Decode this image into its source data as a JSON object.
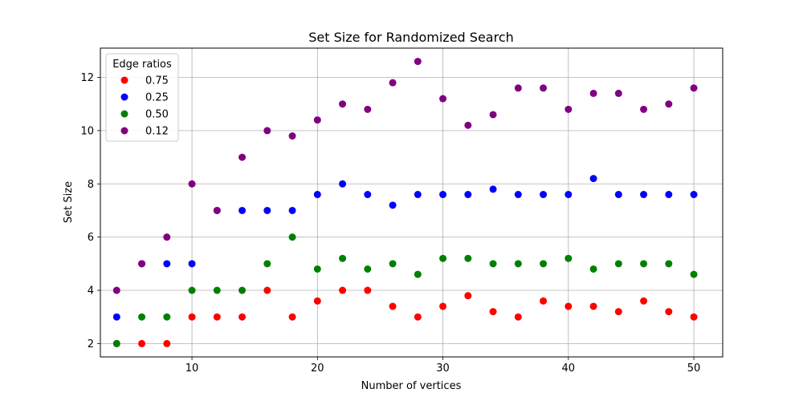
{
  "chart_data": {
    "type": "scatter",
    "title": "Set Size for Randomized Search",
    "xlabel": "Number of vertices",
    "ylabel": "Set Size",
    "xlim": [
      2.7,
      52.3
    ],
    "ylim": [
      1.5,
      13.1
    ],
    "xticks": [
      10,
      20,
      30,
      40,
      50
    ],
    "yticks": [
      2,
      4,
      6,
      8,
      10,
      12
    ],
    "grid": true,
    "legend": {
      "title": "Edge ratios",
      "position": "top-left"
    },
    "series": [
      {
        "name": "0.75",
        "color": "#ff0000",
        "x": [
          4,
          6,
          8,
          10,
          12,
          14,
          16,
          18,
          20,
          22,
          24,
          26,
          28,
          30,
          32,
          34,
          36,
          38,
          40,
          42,
          44,
          46,
          48,
          50
        ],
        "y": [
          2.0,
          2.0,
          2.0,
          3.0,
          3.0,
          3.0,
          4.0,
          3.0,
          3.6,
          4.0,
          4.0,
          3.4,
          3.0,
          3.4,
          3.8,
          3.2,
          3.0,
          3.6,
          3.4,
          3.4,
          3.2,
          3.6,
          3.2,
          3.0
        ]
      },
      {
        "name": "0.25",
        "color": "#0000ff",
        "x": [
          4,
          6,
          8,
          10,
          12,
          14,
          16,
          18,
          20,
          22,
          24,
          26,
          28,
          30,
          32,
          34,
          36,
          38,
          40,
          42,
          44,
          46,
          48,
          50
        ],
        "y": [
          3.0,
          5.0,
          5.0,
          5.0,
          7.0,
          7.0,
          7.0,
          7.0,
          7.6,
          8.0,
          7.6,
          7.2,
          7.6,
          7.6,
          7.6,
          7.8,
          7.6,
          7.6,
          7.6,
          8.2,
          7.6,
          7.6,
          7.6,
          7.6
        ]
      },
      {
        "name": "0.50",
        "color": "#008000",
        "x": [
          4,
          6,
          8,
          10,
          12,
          14,
          16,
          18,
          20,
          22,
          24,
          26,
          28,
          30,
          32,
          34,
          36,
          38,
          40,
          42,
          44,
          46,
          48,
          50
        ],
        "y": [
          2.0,
          3.0,
          3.0,
          4.0,
          4.0,
          4.0,
          5.0,
          6.0,
          4.8,
          5.2,
          4.8,
          5.0,
          4.6,
          5.2,
          5.2,
          5.0,
          5.0,
          5.0,
          5.2,
          4.8,
          5.0,
          5.0,
          5.0,
          4.6
        ]
      },
      {
        "name": "0.12",
        "color": "#800080",
        "x": [
          4,
          6,
          8,
          10,
          12,
          14,
          16,
          18,
          20,
          22,
          24,
          26,
          28,
          30,
          32,
          34,
          36,
          38,
          40,
          42,
          44,
          46,
          48,
          50
        ],
        "y": [
          4.0,
          5.0,
          6.0,
          8.0,
          7.0,
          9.0,
          10.0,
          9.8,
          10.4,
          11.0,
          10.8,
          11.8,
          12.6,
          11.2,
          10.2,
          10.6,
          11.6,
          11.6,
          10.8,
          11.4,
          11.4,
          10.8,
          11.0,
          11.6
        ]
      }
    ]
  }
}
